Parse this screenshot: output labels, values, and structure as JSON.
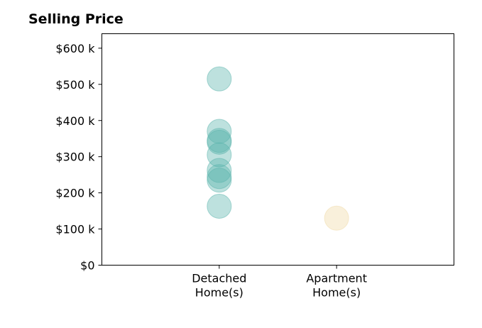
{
  "chart_data": {
    "type": "scatter",
    "title": "Selling Price",
    "xlabel": "",
    "ylabel": "",
    "categories": [
      "Detached\nHome(s)",
      "Apartment\nHome(s)"
    ],
    "x_range": [
      -1,
      2
    ],
    "ylim": [
      0,
      640000
    ],
    "y_ticks": [
      0,
      100000,
      200000,
      300000,
      400000,
      500000,
      600000
    ],
    "y_tick_labels": [
      "$0",
      "$100 k",
      "$200 k",
      "$300 k",
      "$400 k",
      "$500 k",
      "$600 k"
    ],
    "grid": false,
    "legend": "none",
    "series": [
      {
        "category_index": 0,
        "color": "#5ab4ac",
        "values": [
          515000,
          370000,
          345000,
          340000,
          305000,
          262000,
          245000,
          235000,
          163000
        ]
      },
      {
        "category_index": 1,
        "color": "#f0d9a6",
        "values": [
          130000
        ]
      }
    ]
  }
}
